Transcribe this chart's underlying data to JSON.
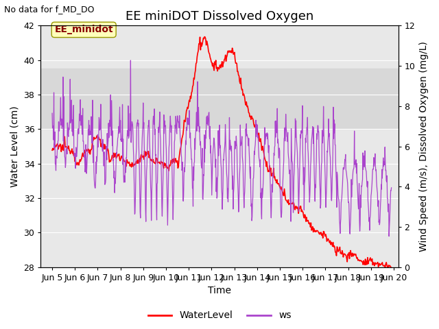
{
  "title": "EE miniDOT Dissolved Oxygen",
  "top_left_text": "No data for f_MD_DO",
  "ylabel_left": "Water Level (cm)",
  "ylabel_right": "Wind Speed (m/s), Dissolved Oxygen (mg/L)",
  "xlabel": "Time",
  "ylim_left": [
    28,
    42
  ],
  "ylim_right": [
    0,
    12
  ],
  "xlim_days": [
    4.5,
    20.2
  ],
  "xtick_days": [
    5,
    6,
    7,
    8,
    9,
    10,
    11,
    12,
    13,
    14,
    15,
    16,
    17,
    18,
    19,
    20
  ],
  "xtick_labels": [
    "Jun 5",
    "Jun 6",
    "Jun 7",
    "Jun 8",
    "Jun 9",
    "Jun 10",
    "Jun 11",
    "Jun 12",
    "Jun 13",
    "Jun 14",
    "Jun 15",
    "Jun 16",
    "Jun 17",
    "Jun 18",
    "Jun 19",
    "Jun 20"
  ],
  "color_wl": "#ff0000",
  "color_ws": "#aa44cc",
  "legend_labels": [
    "WaterLevel",
    "ws"
  ],
  "annotation_box": "EE_minidot",
  "annotation_box_facecolor": "#ffffbb",
  "annotation_box_edgecolor": "#999900",
  "annotation_text_color": "#880000",
  "shade_ymin": 36.0,
  "shade_ymax": 39.5,
  "shade_color": "#d8d8d8",
  "bg_color": "#e8e8e8",
  "grid_color": "#ffffff",
  "title_fontsize": 13,
  "label_fontsize": 10,
  "tick_fontsize": 9,
  "annot_fontsize": 10
}
